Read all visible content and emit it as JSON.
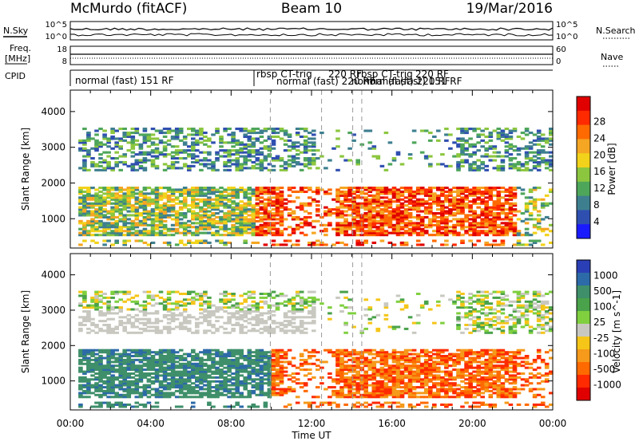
{
  "header": {
    "station": "McMurdo (fitACF)",
    "beam": "Beam 10",
    "date": "19/Mar/2016"
  },
  "side_labels": {
    "nsky": "N.Sky",
    "freq_top": "Freq.",
    "freq_unit": "[MHz]",
    "cpid": "CPID",
    "nsearch": "N.Search",
    "nave": "Nave"
  },
  "strip_ticks": {
    "noise_left": [
      "10^5",
      "10^0"
    ],
    "noise_right": [
      "10^5",
      "10^0"
    ],
    "freq_left": [
      "18",
      "8"
    ],
    "nave_right": [
      "60",
      "0"
    ]
  },
  "cpid_labels": [
    "normal (fast) 151 RF",
    "rbsp CT-trig",
    "220 RF",
    "normal (fast) 220 RF",
    "rbsp CT-trig",
    "220 RF",
    "normal (fast) 220 RF",
    "normal (fast) 151 RF"
  ],
  "chart_data": [
    {
      "type": "heatmap",
      "name_hint": "power-panel",
      "ylabel": "Slant Range [km]",
      "xlabel": "",
      "x_ticks": [
        "00:00",
        "04:00",
        "08:00",
        "12:00",
        "16:00",
        "20:00",
        "00:00"
      ],
      "x_range_hours": [
        0,
        24
      ],
      "y_ticks": [
        1000,
        2000,
        3000,
        4000
      ],
      "y_range_km": [
        180,
        4600
      ],
      "colorbar": {
        "label": "Power [dB]",
        "ticks": [
          4,
          8,
          12,
          16,
          20,
          24,
          28
        ],
        "colors": [
          "#1a1aff",
          "#2f4fb0",
          "#3e7f8f",
          "#4ea65a",
          "#8cc63f",
          "#f2d21a",
          "#f5a623",
          "#ff6a00",
          "#ff2a00",
          "#e00000"
        ]
      }
    },
    {
      "type": "heatmap",
      "name_hint": "velocity-panel",
      "ylabel": "Slant Range [km]",
      "xlabel": "Time UT",
      "x_ticks": [
        "00:00",
        "04:00",
        "08:00",
        "12:00",
        "16:00",
        "20:00",
        "00:00"
      ],
      "x_range_hours": [
        0,
        24
      ],
      "y_ticks": [
        1000,
        2000,
        3000,
        4000
      ],
      "y_range_km": [
        180,
        4600
      ],
      "colorbar": {
        "label": "Velocity [m s^-1]",
        "ticks": [
          1000,
          500,
          100,
          25,
          -25,
          -100,
          -500,
          -1000
        ],
        "colors": [
          "#2a3fb5",
          "#2d6aa8",
          "#3e8f6a",
          "#4aa24a",
          "#7fcf3f",
          "#c8c8c0",
          "#f5c518",
          "#f59a1a",
          "#ff6a00",
          "#ff2a00",
          "#e00000"
        ]
      }
    }
  ]
}
